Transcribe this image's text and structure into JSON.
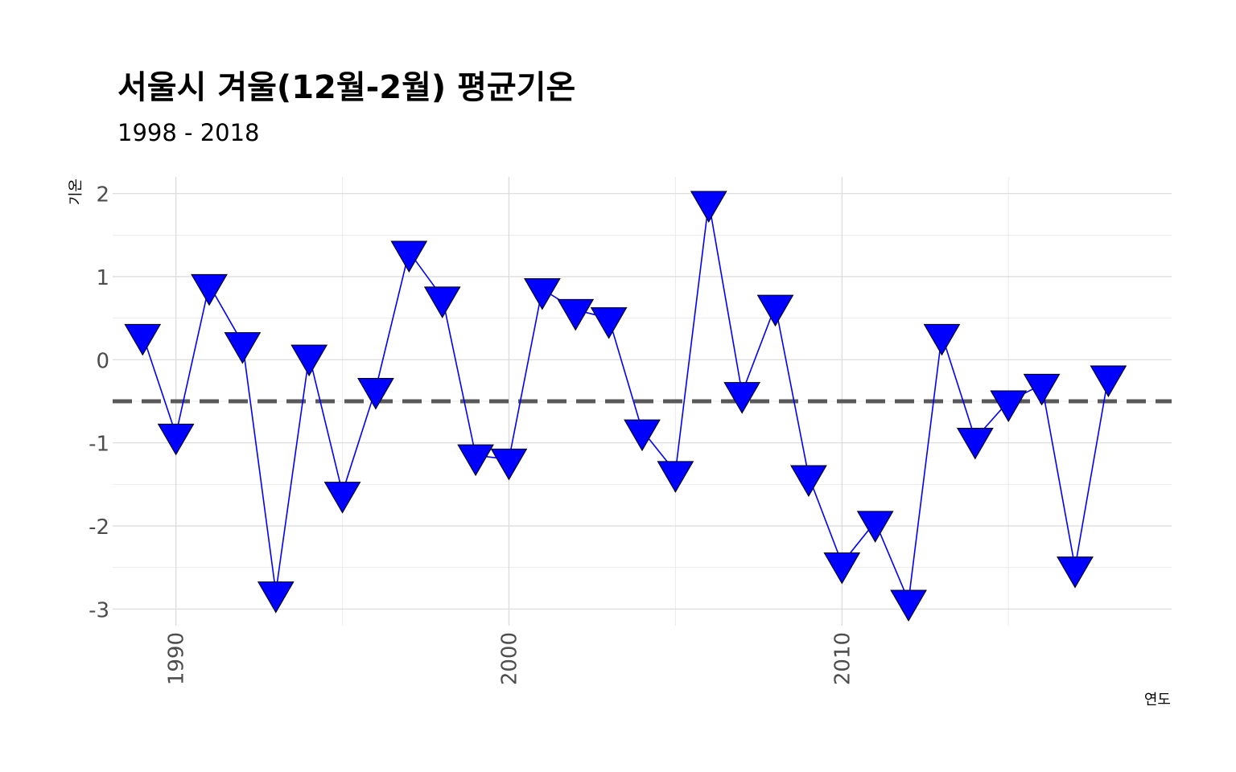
{
  "title": "서울시 겨울(12월-2월) 평균기온",
  "subtitle": "1998 - 2018",
  "chart_data": {
    "type": "line",
    "marker": "triangle-down",
    "title": "서울시 겨울(12월-2월) 평균기온",
    "subtitle": "1998 - 2018",
    "xlabel": "연도",
    "ylabel": "기온",
    "xlim": [
      1988.1,
      2019.9
    ],
    "ylim": [
      -3.2,
      2.2
    ],
    "x_ticks": [
      1990,
      2000,
      2010
    ],
    "y_ticks": [
      -3,
      -2,
      -1,
      0,
      1,
      2
    ],
    "x_tick_labels": [
      "1990",
      "2000",
      "2010"
    ],
    "y_tick_labels": [
      "-3",
      "-2",
      "-1",
      "0",
      "1",
      "2"
    ],
    "grid": true,
    "reference_line": {
      "y": -0.5,
      "style": "dashed",
      "color": "#595959"
    },
    "series": [
      {
        "color": "#0000ff",
        "x": [
          1989,
          1990,
          1991,
          1992,
          1993,
          1994,
          1995,
          1996,
          1997,
          1998,
          1999,
          2000,
          2001,
          2002,
          2003,
          2004,
          2005,
          2006,
          2007,
          2008,
          2009,
          2010,
          2011,
          2012,
          2013,
          2014,
          2015,
          2016,
          2017,
          2018
        ],
        "y": [
          0.3,
          -0.9,
          0.9,
          0.2,
          -2.8,
          0.05,
          -1.6,
          -0.35,
          1.3,
          0.75,
          -1.15,
          -1.2,
          0.85,
          0.6,
          0.5,
          -0.85,
          -1.35,
          1.9,
          -0.4,
          0.65,
          -1.4,
          -2.45,
          -1.95,
          -2.9,
          0.3,
          -0.95,
          -0.5,
          -0.3,
          -2.5,
          -0.2
        ]
      }
    ]
  }
}
